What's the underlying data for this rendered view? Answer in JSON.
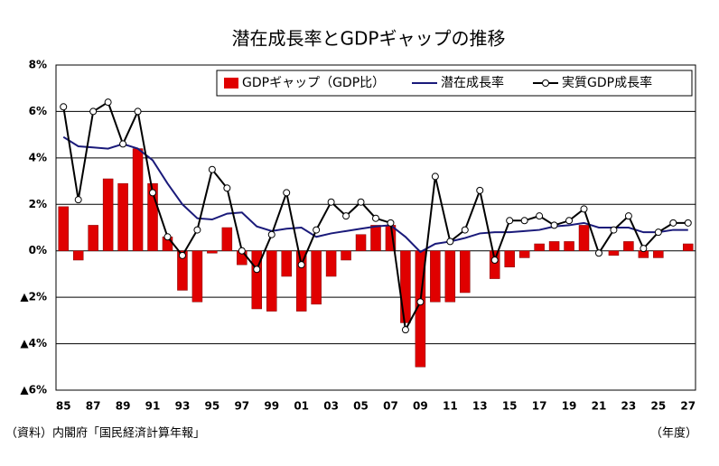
{
  "chart_data": {
    "type": "bar",
    "title": "潜在成長率とGDPギャップの推移",
    "source": "（資料）内閣府「国民経済計算年報」",
    "x_unit": "（年度）",
    "categories": [
      "85",
      null,
      "87",
      null,
      "89",
      null,
      "91",
      null,
      "93",
      null,
      "95",
      null,
      "97",
      null,
      "99",
      null,
      "01",
      null,
      "03",
      null,
      "05",
      null,
      "07",
      null,
      "09",
      null,
      "11",
      null,
      "13",
      null,
      "15",
      null,
      "17",
      null,
      "19",
      null,
      "21",
      null,
      "23",
      null,
      "25",
      null,
      "27"
    ],
    "series": [
      {
        "name": "GDPギャップ（GDP比）",
        "type": "bar",
        "color": "#e00000",
        "values": [
          1.9,
          -0.4,
          1.1,
          3.1,
          2.9,
          4.4,
          2.9,
          0.6,
          -1.7,
          -2.2,
          -0.1,
          1.0,
          -0.6,
          -2.5,
          -2.6,
          -1.1,
          -2.6,
          -2.3,
          -1.1,
          -0.4,
          0.7,
          1.1,
          1.1,
          -3.1,
          -5.0,
          -2.2,
          -2.2,
          -1.8,
          0.0,
          -1.2,
          -0.7,
          -0.3,
          0.3,
          0.4,
          0.4,
          1.1,
          0.0,
          -0.2,
          0.4,
          -0.3,
          -0.3,
          0.0,
          0.3
        ]
      },
      {
        "name": "潜在成長率",
        "type": "line",
        "color": "#1a1a7a",
        "values": [
          4.9,
          4.5,
          4.45,
          4.4,
          4.6,
          4.4,
          3.9,
          2.9,
          2.0,
          1.4,
          1.35,
          1.6,
          1.65,
          1.05,
          0.85,
          0.95,
          1.0,
          0.6,
          0.75,
          0.85,
          0.95,
          1.05,
          1.1,
          0.6,
          -0.05,
          0.3,
          0.4,
          0.55,
          0.75,
          0.8,
          0.8,
          0.85,
          0.9,
          1.05,
          1.1,
          1.2,
          1.0,
          1.0,
          1.0,
          0.8,
          0.8,
          0.9,
          0.9
        ]
      },
      {
        "name": "実質GDP成長率",
        "type": "line",
        "color": "#000000",
        "marker": "circle",
        "values": [
          6.2,
          2.2,
          6.0,
          6.4,
          4.6,
          6.0,
          2.5,
          0.6,
          -0.2,
          0.9,
          3.5,
          2.7,
          0.0,
          -0.8,
          0.7,
          2.5,
          -0.6,
          0.9,
          2.1,
          1.5,
          2.1,
          1.4,
          1.2,
          -3.4,
          -2.2,
          3.2,
          0.4,
          0.9,
          2.6,
          -0.4,
          1.3,
          1.3,
          1.5,
          1.1,
          1.3,
          1.8,
          -0.1,
          0.9,
          1.5,
          0.1,
          0.8,
          1.2,
          1.2
        ]
      }
    ],
    "ylim": [
      -6,
      8
    ],
    "yticks": [
      {
        "value": -6,
        "label": "▲6%"
      },
      {
        "value": -4,
        "label": "▲4%"
      },
      {
        "value": -2,
        "label": "▲2%"
      },
      {
        "value": 0,
        "label": "0%"
      },
      {
        "value": 2,
        "label": "2%"
      },
      {
        "value": 4,
        "label": "4%"
      },
      {
        "value": 6,
        "label": "6%"
      },
      {
        "value": 8,
        "label": "8%"
      }
    ],
    "grid": true,
    "legend": "top-right"
  }
}
